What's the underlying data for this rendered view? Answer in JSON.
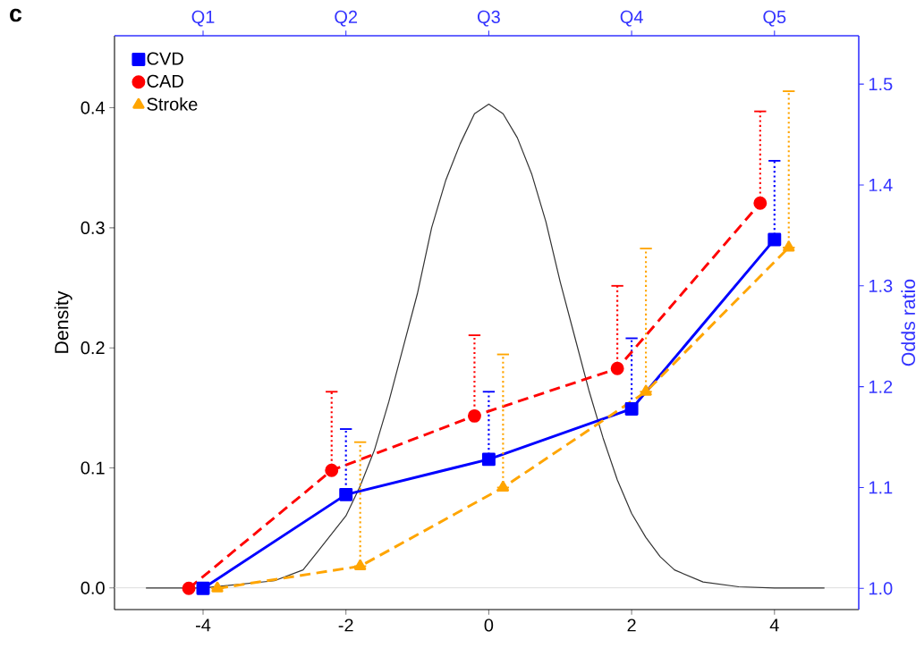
{
  "chart_data": {
    "type": "line",
    "ylabel": "Density",
    "y2label": "Odds ratio",
    "annotations": [
      "c",
      {
        "text": "Q1",
        "x": -4
      },
      {
        "text": "Q2",
        "x": -2
      },
      {
        "text": "Q3",
        "x": 0
      },
      {
        "text": "Q4",
        "x": 2
      },
      {
        "text": "Q5",
        "x": 4
      }
    ],
    "xlim": [
      -5.24,
      5.18
    ],
    "xticks": [
      -4,
      -2,
      0,
      2,
      4
    ],
    "ylim": [
      -0.018,
      0.46
    ],
    "yticks": [
      {
        "value": 0,
        "label": "0.0"
      },
      {
        "value": 0.1,
        "label": "0.1"
      },
      {
        "value": 0.2,
        "label": "0.2"
      },
      {
        "value": 0.3,
        "label": "0.3"
      },
      {
        "value": 0.4,
        "label": "0.4"
      }
    ],
    "y2lim": [
      0.979,
      1.548
    ],
    "y2ticks": [
      {
        "value": 1.0,
        "label": "1.0"
      },
      1.1,
      1.2,
      1.3,
      1.4,
      1.5
    ],
    "ref_lines": [
      {
        "axis": "y",
        "value": 0,
        "color": "#d9d9d9"
      }
    ],
    "legend": "top left",
    "series": [
      {
        "color": "#333333",
        "marker": "none",
        "line_style": "solid",
        "x": [
          -4.8,
          -4,
          -3.5,
          -3,
          -2.6,
          -2.4,
          -2.2,
          -2,
          -1.8,
          -1.6,
          -1.4,
          -1.2,
          -1,
          -0.8,
          -0.6,
          -0.4,
          -0.2,
          0,
          0.2,
          0.4,
          0.6,
          0.8,
          1,
          1.2,
          1.4,
          1.6,
          1.8,
          2,
          2.2,
          2.4,
          2.6,
          3,
          3.5,
          4,
          4.7
        ],
        "values": [
          0,
          0,
          null,
          0.006,
          0.015,
          0.03,
          0.045,
          0.06,
          0.085,
          0.115,
          0.155,
          0.2,
          0.245,
          0.3,
          0.34,
          0.37,
          0.395,
          0.403,
          0.395,
          0.375,
          0.345,
          0.305,
          0.255,
          0.21,
          0.165,
          0.125,
          0.09,
          0.062,
          0.042,
          0.026,
          0.015,
          0.005,
          0.001,
          0,
          0
        ]
      },
      {
        "name": "CVD",
        "axis": "y2",
        "color": "#0000ff",
        "marker": "square",
        "line_style": "solid",
        "x": [
          -4,
          -2,
          0,
          2,
          4
        ],
        "values": [
          1.0,
          1.093,
          1.128,
          1.178,
          1.346
        ],
        "errors": [
          null,
          [
            1.093,
            1.158
          ],
          [
            1.128,
            1.195
          ],
          [
            1.178,
            1.248
          ],
          [
            1.346,
            1.424
          ]
        ]
      },
      {
        "name": "CAD",
        "axis": "y2",
        "color": "#ff0000",
        "marker": "circle",
        "line_style": "dashed",
        "x": [
          -4.2,
          -2.2,
          -0.2,
          1.8,
          3.8
        ],
        "values": [
          1.0,
          1.117,
          1.171,
          1.218,
          1.382
        ],
        "errors": [
          null,
          [
            1.117,
            1.195
          ],
          [
            1.171,
            1.251
          ],
          [
            1.218,
            1.3
          ],
          [
            1.382,
            1.473
          ]
        ]
      },
      {
        "name": "Stroke",
        "axis": "y2",
        "color": "#ffa500",
        "marker": "triangle",
        "line_style": "dashed",
        "x": [
          -3.8,
          -1.8,
          0.2,
          2.2,
          4.2
        ],
        "values": [
          1.0,
          1.022,
          1.1,
          1.195,
          1.338
        ],
        "errors": [
          null,
          [
            1.022,
            1.145
          ],
          [
            1.1,
            1.232
          ],
          [
            1.195,
            1.337
          ],
          [
            1.338,
            1.493
          ]
        ]
      }
    ]
  }
}
